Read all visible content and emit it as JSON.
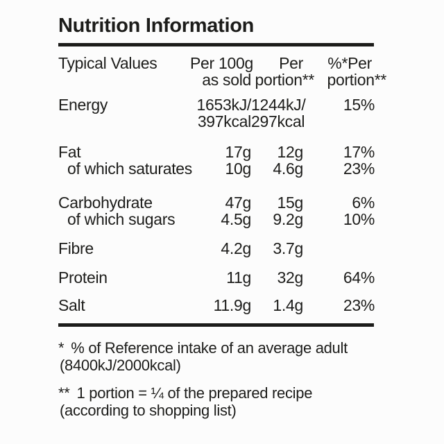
{
  "title": "Nutrition Information",
  "table": {
    "header": {
      "col1": "Typical Values",
      "col2_line1": "Per 100g",
      "col2_line2": "as sold",
      "col3_line1": "Per",
      "col3_line2": "portion**",
      "col4_line1": "%*Per",
      "col4_line2": "portion**"
    },
    "rows": [
      {
        "label": "Energy",
        "per_100g_line1": "1653kJ/",
        "per_100g_line2": "397kcal",
        "per_portion_line1": "1244kJ/",
        "per_portion_line2": "297kcal",
        "ri_percent": "15%"
      },
      {
        "label": "Fat",
        "per_100g": "17g",
        "per_portion": "12g",
        "ri_percent": "17%"
      },
      {
        "label": "of which saturates",
        "per_100g": "10g",
        "per_portion": "4.6g",
        "ri_percent": "23%"
      },
      {
        "label": "Carbohydrate",
        "per_100g": "47g",
        "per_portion": "15g",
        "ri_percent": "6%"
      },
      {
        "label": "of which sugars",
        "per_100g": "4.5g",
        "per_portion": "9.2g",
        "ri_percent": "10%"
      },
      {
        "label": "Fibre",
        "per_100g": "4.2g",
        "per_portion": "3.7g",
        "ri_percent": ""
      },
      {
        "label": "Protein",
        "per_100g": "11g",
        "per_portion": "32g",
        "ri_percent": "64%"
      },
      {
        "label": "Salt",
        "per_100g": "11.9g",
        "per_portion": "1.4g",
        "ri_percent": "23%"
      }
    ]
  },
  "footnotes": [
    {
      "marker": "*",
      "line1": "% of Reference intake of an average adult",
      "line2": "(8400kJ/2000kcal)"
    },
    {
      "marker": "**",
      "line1": "1 portion = ¼ of the prepared recipe",
      "line2": "(according to shopping list)"
    }
  ],
  "colors": {
    "text": "#1c1c1a",
    "background": "#fcfcfc",
    "rule": "#1c1c1a"
  }
}
